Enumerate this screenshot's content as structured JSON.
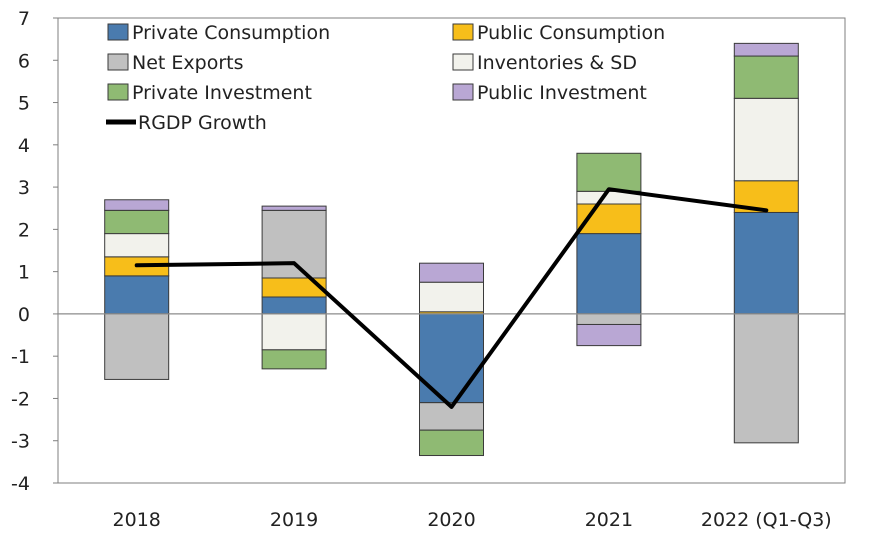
{
  "chart_data": {
    "type": "bar",
    "stacked": true,
    "categories": [
      "2018",
      "2019",
      "2020",
      "2021",
      "2022 (Q1-Q3)"
    ],
    "ylim": [
      -4,
      7
    ],
    "yticks": [
      "7",
      "6",
      "5",
      "4",
      "3",
      "2",
      "1",
      "0",
      "-1",
      "-2",
      "-3",
      "-4"
    ],
    "grid": false,
    "legend_position": "top",
    "series": [
      {
        "name": "Private Consumption",
        "color": "#4a7bae",
        "values": [
          0.9,
          0.4,
          -2.1,
          1.9,
          2.4
        ]
      },
      {
        "name": "Public Consumption",
        "color": "#f7be1a",
        "values": [
          0.45,
          0.45,
          0.05,
          0.7,
          0.75
        ]
      },
      {
        "name": "Net Exports",
        "color": "#c0c0c0",
        "values": [
          -1.55,
          1.6,
          -0.65,
          -0.25,
          -3.05
        ]
      },
      {
        "name": "Inventories & SD",
        "color": "#f2f2ec",
        "values": [
          0.55,
          -0.85,
          0.7,
          0.3,
          1.95
        ]
      },
      {
        "name": "Private Investment",
        "color": "#8fba73",
        "values": [
          0.55,
          -0.45,
          -0.6,
          0.9,
          1.0
        ]
      },
      {
        "name": "Public Investment",
        "color": "#b9a7d4",
        "values": [
          0.25,
          0.1,
          0.45,
          -0.5,
          0.3
        ]
      }
    ],
    "line": {
      "name": "RGDP Growth",
      "color": "#000000",
      "values": [
        1.15,
        1.2,
        -2.2,
        2.95,
        2.45
      ]
    }
  }
}
